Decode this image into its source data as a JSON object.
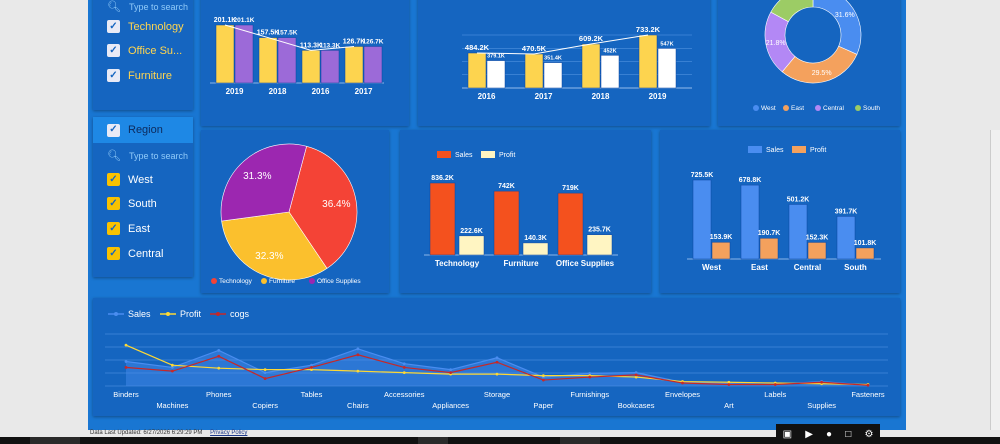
{
  "filters": {
    "category": {
      "search_placeholder": "Type to search",
      "items": [
        {
          "label": "Technology"
        },
        {
          "label": "Office Su..."
        },
        {
          "label": "Furniture"
        }
      ]
    },
    "region": {
      "title": "Region",
      "search_placeholder": "Type to search",
      "items": [
        {
          "label": "West"
        },
        {
          "label": "South"
        },
        {
          "label": "East"
        },
        {
          "label": "Central"
        }
      ]
    }
  },
  "footer": {
    "last_updated": "Data Last Updated: 6/27/2026 6:29:29 PM",
    "privacy": "Privacy Policy"
  },
  "colors": {
    "dashboard_bg": "#1976d2",
    "panel_bg": "#1565c0",
    "gold": "#fdd44f",
    "purple": "#9c6ad8",
    "cream": "#fff5c2",
    "orange_red": "#f4511e",
    "sky": "#4a8df0",
    "orange": "#f4a15d"
  },
  "chart_data": [
    {
      "type": "bar",
      "categories": [
        "2019",
        "2018",
        "2016",
        "2017"
      ],
      "series": [
        {
          "values": [
            201.1,
            157.5,
            113.3,
            126.7
          ]
        },
        {
          "values": [
            201.1,
            157.5,
            113.3,
            126.7
          ]
        }
      ],
      "labels": [
        [
          "201.1K",
          "157.5K",
          "113.3K",
          "126.7K"
        ],
        [
          "201.1K",
          "157.5K",
          "113.3K",
          "126.7K"
        ]
      ],
      "line_values": [
        201.1,
        157.5,
        113.3,
        126.7
      ]
    },
    {
      "type": "bar",
      "categories": [
        "2016",
        "2017",
        "2018",
        "2019"
      ],
      "series": [
        {
          "values": [
            484.2,
            470.5,
            609.2,
            733.2
          ]
        },
        {
          "values": [
            379.1,
            351.4,
            452,
            547
          ]
        }
      ],
      "labels": [
        [
          "484.2K",
          "470.5K",
          "609.2K",
          "733.2K"
        ],
        [
          "379.1K",
          "351.4K",
          "452K",
          "547K"
        ]
      ],
      "line_values": [
        484.2,
        470.5,
        609.2,
        733.2
      ]
    },
    {
      "type": "pie",
      "donut": true,
      "legend": [
        "West",
        "East",
        "Central",
        "South"
      ],
      "values": [
        31.6,
        29.5,
        21.8,
        17.1
      ],
      "labels": [
        "31.6%",
        "29.5%",
        "21.8%",
        ""
      ],
      "colors": [
        "#4a8df0",
        "#f4a15d",
        "#b388f5",
        "#9ccc65"
      ]
    },
    {
      "type": "pie",
      "legend": [
        "Technology",
        "Furniture",
        "Office Supplies"
      ],
      "values": [
        36.4,
        32.3,
        31.3
      ],
      "labels": [
        "36.4%",
        "32.3%",
        "31.3%"
      ],
      "colors": [
        "#f44336",
        "#fbc02d",
        "#9c27b0"
      ]
    },
    {
      "type": "bar",
      "legend": [
        "Sales",
        "Profit"
      ],
      "categories": [
        "Technology",
        "Furniture",
        "Office Supplies"
      ],
      "series": [
        {
          "name": "Sales",
          "values": [
            836.2,
            742,
            719
          ]
        },
        {
          "name": "Profit",
          "values": [
            222.6,
            140.3,
            235.7
          ]
        }
      ],
      "labels": [
        [
          "836.2K",
          "742K",
          "719K"
        ],
        [
          "222.6K",
          "140.3K",
          "235.7K"
        ]
      ]
    },
    {
      "type": "bar",
      "legend": [
        "Sales",
        "Profit"
      ],
      "categories": [
        "West",
        "East",
        "Central",
        "South"
      ],
      "series": [
        {
          "name": "Sales",
          "values": [
            725.5,
            678.8,
            501.2,
            391.7
          ]
        },
        {
          "name": "Profit",
          "values": [
            153.9,
            190.7,
            152.3,
            101.8
          ]
        }
      ],
      "labels": [
        [
          "725.5K",
          "678.8K",
          "501.2K",
          "391.7K"
        ],
        [
          "153.9K",
          "190.7K",
          "152.3K",
          "101.8K"
        ]
      ]
    },
    {
      "type": "line",
      "legend": [
        "Sales",
        "Profit",
        "cogs"
      ],
      "categories": [
        "Binders",
        "Machines",
        "Phones",
        "Copiers",
        "Tables",
        "Chairs",
        "Accessories",
        "Appliances",
        "Storage",
        "Paper",
        "Furnishings",
        "Bookcases",
        "Envelopes",
        "Art",
        "Labels",
        "Supplies",
        "Fasteners"
      ],
      "series": [
        {
          "name": "Sales",
          "values": [
            33,
            25,
            48,
            18,
            28,
            50,
            30,
            22,
            38,
            12,
            17,
            18,
            5,
            3,
            2,
            6,
            1
          ]
        },
        {
          "name": "Profit",
          "values": [
            55,
            28,
            24,
            22,
            22,
            20,
            18,
            16,
            16,
            14,
            14,
            12,
            6,
            5,
            4,
            3,
            2
          ]
        },
        {
          "name": "cogs",
          "values": [
            25,
            20,
            40,
            10,
            25,
            42,
            25,
            18,
            32,
            8,
            12,
            15,
            4,
            2,
            2,
            5,
            1
          ]
        }
      ],
      "ylim": [
        0,
        70
      ]
    }
  ]
}
